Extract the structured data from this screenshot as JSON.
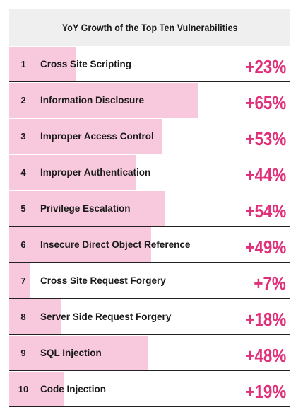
{
  "chart_data": {
    "type": "bar",
    "title": "YoY Growth of the Top Ten Vulnerabilities",
    "ranks": [
      "1",
      "2",
      "3",
      "4",
      "5",
      "6",
      "7",
      "8",
      "9",
      "10"
    ],
    "categories": [
      "Cross Site Scripting",
      "Information Disclosure",
      "Improper Access Control",
      "Improper Authentication",
      "Privilege Escalation",
      "Insecure Direct Object Reference",
      "Cross Site Request Forgery",
      "Server Side Request Forgery",
      "SQL Injection",
      "Code Injection"
    ],
    "values": [
      23,
      65,
      53,
      44,
      54,
      49,
      7,
      18,
      48,
      19
    ],
    "value_labels": [
      "+23%",
      "+65%",
      "+53%",
      "+44%",
      "+54%",
      "+49%",
      "+7%",
      "+18%",
      "+48%",
      "+19%"
    ],
    "orientation": "horizontal",
    "grid": false,
    "colors": {
      "bar": "#f8c8dc",
      "value_text": "#e0307a",
      "header_bg": "#efefef",
      "divider": "#222222"
    }
  }
}
